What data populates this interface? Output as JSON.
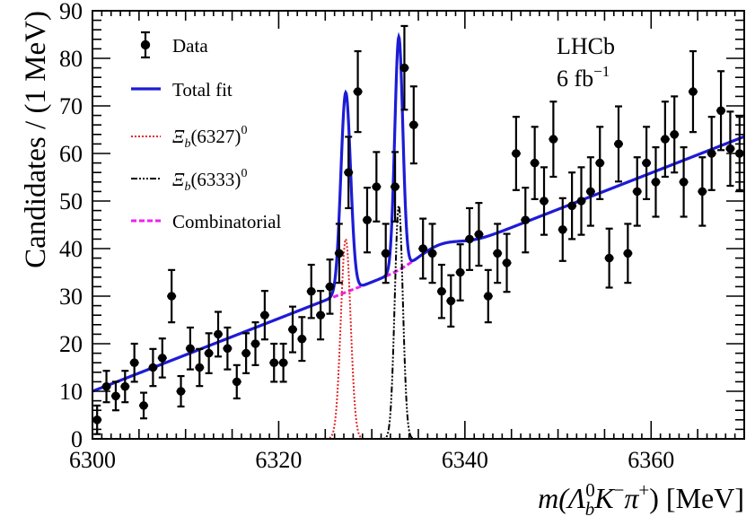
{
  "chart_data": {
    "type": "scatter",
    "ylabel": "Candidates / (1 MeV)",
    "xlabel": {
      "prefix": "m(",
      "lambda": "Λ",
      "lambda_sup": "0",
      "lambda_sub": "b",
      "kaon": "K",
      "kaon_sup": "−",
      "pion": "π",
      "pion_sup": "+",
      "suffix": ") [MeV]"
    },
    "xlim": [
      6300,
      6370
    ],
    "ylim": [
      0,
      90
    ],
    "xticks": [
      "6300",
      "6320",
      "6340",
      "6360"
    ],
    "yticks": [
      "0",
      "10",
      "20",
      "30",
      "40",
      "50",
      "60",
      "70",
      "80",
      "90"
    ],
    "annotation": {
      "experiment": "LHCb",
      "lumi_value": "6 fb",
      "lumi_sup": "−1"
    },
    "legend": {
      "position": "top-left",
      "entries": [
        {
          "key": "data",
          "label": "Data"
        },
        {
          "key": "total",
          "label": "Total fit"
        },
        {
          "key": "xi6327",
          "base": "Ξ",
          "sub": "b",
          "paren": "(6327)",
          "sup": "0"
        },
        {
          "key": "xi6333",
          "base": "Ξ",
          "sub": "b",
          "paren": "(6333)",
          "sup": "0"
        },
        {
          "key": "comb",
          "label": "Combinatorial"
        }
      ]
    },
    "colors": {
      "data": "#000000",
      "total": "#1c1cd6",
      "xi6327": "#e8262b",
      "xi6333": "#000000",
      "comb": "#ee22ee"
    },
    "data_points": {
      "x": [
        6300.5,
        6301.5,
        6302.5,
        6303.5,
        6304.5,
        6305.5,
        6306.5,
        6307.5,
        6308.5,
        6309.5,
        6310.5,
        6311.5,
        6312.5,
        6313.5,
        6314.5,
        6315.5,
        6316.5,
        6317.5,
        6318.5,
        6319.5,
        6320.5,
        6321.5,
        6322.5,
        6323.5,
        6324.5,
        6325.5,
        6326.5,
        6327.5,
        6328.5,
        6329.5,
        6330.5,
        6331.5,
        6332.5,
        6333.5,
        6334.5,
        6335.5,
        6336.5,
        6337.5,
        6338.5,
        6339.5,
        6340.5,
        6341.5,
        6342.5,
        6343.5,
        6344.5,
        6345.5,
        6346.5,
        6347.5,
        6348.5,
        6349.5,
        6350.5,
        6351.5,
        6352.5,
        6353.5,
        6354.5,
        6355.5,
        6356.5,
        6357.5,
        6358.5,
        6359.5,
        6360.5,
        6361.5,
        6362.5,
        6363.5,
        6364.5,
        6365.5,
        6366.5,
        6367.5,
        6368.5,
        6369.5
      ],
      "y": [
        4,
        11,
        9,
        11,
        16,
        7,
        15,
        17,
        30,
        10,
        19,
        15,
        18,
        22,
        19,
        12,
        18,
        20,
        26,
        16,
        16,
        23,
        21,
        31,
        26,
        32,
        39,
        56,
        73,
        46,
        53,
        39,
        53,
        78,
        66,
        40,
        39,
        31,
        29,
        35,
        42,
        43,
        30,
        39,
        37,
        60,
        46,
        58,
        50,
        63,
        44,
        49,
        50,
        52,
        58,
        38,
        62,
        39,
        52,
        58,
        54,
        63,
        64,
        54,
        73,
        52,
        60,
        69,
        61,
        60
      ],
      "err": [
        3,
        3.3,
        3,
        3.3,
        4,
        2.7,
        3.9,
        4.1,
        5.5,
        3.2,
        4.4,
        3.9,
        4.2,
        4.7,
        4.4,
        3.5,
        4.2,
        4.5,
        5.1,
        4,
        4,
        4.8,
        4.6,
        5.6,
        5.1,
        5.7,
        6.2,
        7.5,
        8.5,
        6.8,
        7.3,
        6.2,
        7.3,
        8.8,
        8.1,
        6.3,
        6.2,
        5.6,
        5.4,
        5.9,
        6.5,
        6.6,
        5.5,
        6.2,
        6.1,
        7.7,
        6.8,
        7.6,
        7.1,
        7.9,
        6.6,
        7,
        7.1,
        7.2,
        7.6,
        6.2,
        7.9,
        6.2,
        7.2,
        7.6,
        7.3,
        7.9,
        8,
        7.3,
        8.5,
        7.2,
        7.7,
        8.3,
        7.8,
        7.7
      ]
    },
    "model": {
      "comb_linear": {
        "intercept": 10,
        "slope": 0.765
      },
      "comb_bump": {
        "amplitude": 2.3,
        "center": 6337.2,
        "sigma": 2.2
      },
      "xi6327_peak": {
        "mean": 6327.2,
        "height": 42,
        "sigma": 0.52
      },
      "xi6333_peak": {
        "mean": 6332.9,
        "height": 49,
        "sigma": 0.43
      }
    }
  }
}
